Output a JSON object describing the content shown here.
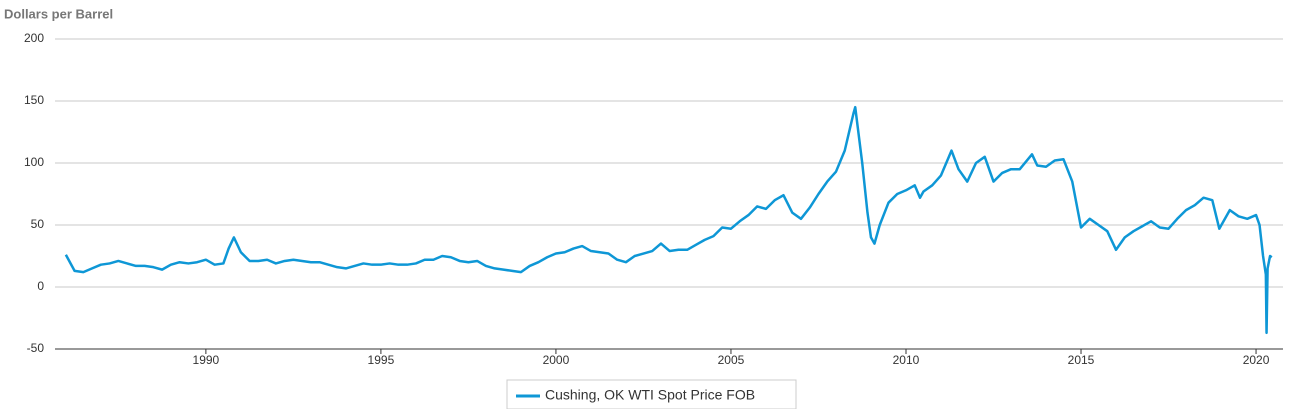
{
  "chart_data": {
    "type": "line",
    "y_axis_label": "Dollars per Barrel",
    "x": [
      1986.0,
      1986.25,
      1986.5,
      1986.75,
      1987.0,
      1987.25,
      1987.5,
      1987.75,
      1988.0,
      1988.25,
      1988.5,
      1988.75,
      1989.0,
      1989.25,
      1989.5,
      1989.75,
      1990.0,
      1990.25,
      1990.5,
      1990.65,
      1990.8,
      1991.0,
      1991.25,
      1991.5,
      1991.75,
      1992.0,
      1992.25,
      1992.5,
      1992.75,
      1993.0,
      1993.25,
      1993.5,
      1993.75,
      1994.0,
      1994.25,
      1994.5,
      1994.75,
      1995.0,
      1995.25,
      1995.5,
      1995.75,
      1996.0,
      1996.25,
      1996.5,
      1996.75,
      1997.0,
      1997.25,
      1997.5,
      1997.75,
      1998.0,
      1998.25,
      1998.5,
      1998.75,
      1999.0,
      1999.25,
      1999.5,
      1999.75,
      2000.0,
      2000.25,
      2000.5,
      2000.75,
      2001.0,
      2001.25,
      2001.5,
      2001.75,
      2002.0,
      2002.25,
      2002.5,
      2002.75,
      2003.0,
      2003.25,
      2003.5,
      2003.75,
      2004.0,
      2004.25,
      2004.5,
      2004.75,
      2005.0,
      2005.25,
      2005.5,
      2005.75,
      2006.0,
      2006.25,
      2006.5,
      2006.75,
      2007.0,
      2007.25,
      2007.5,
      2007.75,
      2008.0,
      2008.25,
      2008.5,
      2008.55,
      2008.75,
      2008.9,
      2009.0,
      2009.1,
      2009.25,
      2009.5,
      2009.75,
      2010.0,
      2010.25,
      2010.4,
      2010.5,
      2010.75,
      2011.0,
      2011.3,
      2011.5,
      2011.75,
      2012.0,
      2012.25,
      2012.5,
      2012.75,
      2013.0,
      2013.25,
      2013.6,
      2013.75,
      2014.0,
      2014.25,
      2014.5,
      2014.75,
      2015.0,
      2015.25,
      2015.5,
      2015.75,
      2016.0,
      2016.25,
      2016.5,
      2016.75,
      2017.0,
      2017.25,
      2017.5,
      2017.75,
      2018.0,
      2018.25,
      2018.5,
      2018.75,
      2018.95,
      2019.25,
      2019.5,
      2019.75,
      2020.0,
      2020.1,
      2020.2,
      2020.28,
      2020.3,
      2020.33,
      2020.4,
      2020.45
    ],
    "series": [
      {
        "name": "Cushing, OK WTI Spot Price FOB",
        "color": "#0e97d6",
        "values": [
          26,
          13,
          12,
          15,
          18,
          19,
          21,
          19,
          17,
          17,
          16,
          14,
          18,
          20,
          19,
          20,
          22,
          18,
          19,
          31,
          40,
          28,
          21,
          21,
          22,
          19,
          21,
          22,
          21,
          20,
          20,
          18,
          16,
          15,
          17,
          19,
          18,
          18,
          19,
          18,
          18,
          19,
          22,
          22,
          25,
          24,
          21,
          20,
          21,
          17,
          15,
          14,
          13,
          12,
          17,
          20,
          24,
          27,
          28,
          31,
          33,
          29,
          28,
          27,
          22,
          20,
          25,
          27,
          29,
          35,
          29,
          30,
          30,
          34,
          38,
          41,
          48,
          47,
          53,
          58,
          65,
          63,
          70,
          74,
          60,
          55,
          64,
          75,
          85,
          93,
          110,
          140,
          145,
          100,
          60,
          40,
          35,
          50,
          68,
          75,
          78,
          82,
          72,
          77,
          82,
          90,
          110,
          95,
          85,
          100,
          105,
          85,
          92,
          95,
          95,
          107,
          98,
          97,
          102,
          103,
          85,
          48,
          55,
          50,
          45,
          30,
          40,
          45,
          49,
          53,
          48,
          47,
          55,
          62,
          66,
          72,
          70,
          47,
          62,
          57,
          55,
          58,
          50,
          25,
          10,
          -37,
          15,
          25,
          24
        ]
      }
    ],
    "xlim": [
      1985.69,
      2020.77
    ],
    "ylim": [
      -50,
      200
    ],
    "xticks": [
      1990,
      1995,
      2000,
      2005,
      2010,
      2015,
      2020
    ],
    "yticks": [
      -50,
      0,
      50,
      100,
      150,
      200
    ],
    "grid": true
  }
}
